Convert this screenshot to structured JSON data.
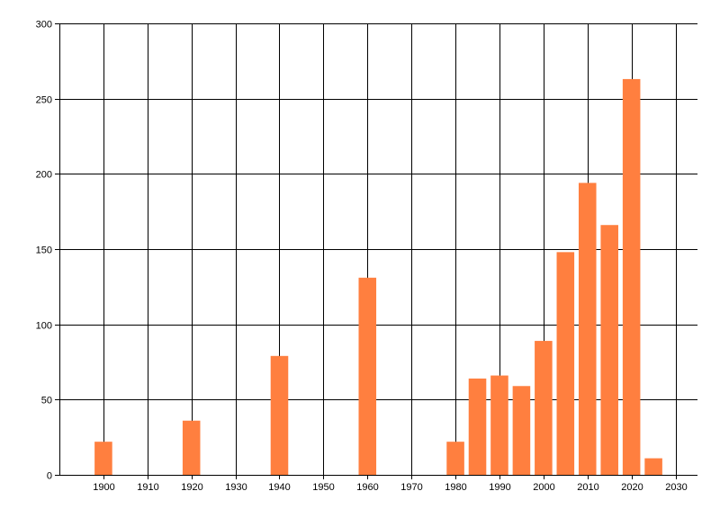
{
  "chart_data": {
    "type": "bar",
    "x": [
      1900,
      1920,
      1940,
      1960,
      1980,
      1985,
      1990,
      1995,
      2000,
      2005,
      2010,
      2015,
      2020,
      2025
    ],
    "values": [
      22,
      36,
      79,
      131,
      22,
      64,
      66,
      59,
      89,
      148,
      194,
      166,
      263,
      11
    ],
    "xlim": [
      1890,
      2035
    ],
    "ylim": [
      0,
      300
    ],
    "x_ticks": [
      1900,
      1910,
      1920,
      1930,
      1940,
      1950,
      1960,
      1970,
      1980,
      1990,
      2000,
      2010,
      2020,
      2030
    ],
    "y_ticks": [
      0,
      50,
      100,
      150,
      200,
      250,
      300
    ],
    "bar_width_years": 4,
    "bar_color": "#FF7F3F",
    "grid": true,
    "grid_color": "#000000",
    "title": "",
    "xlabel": "",
    "ylabel": ""
  }
}
